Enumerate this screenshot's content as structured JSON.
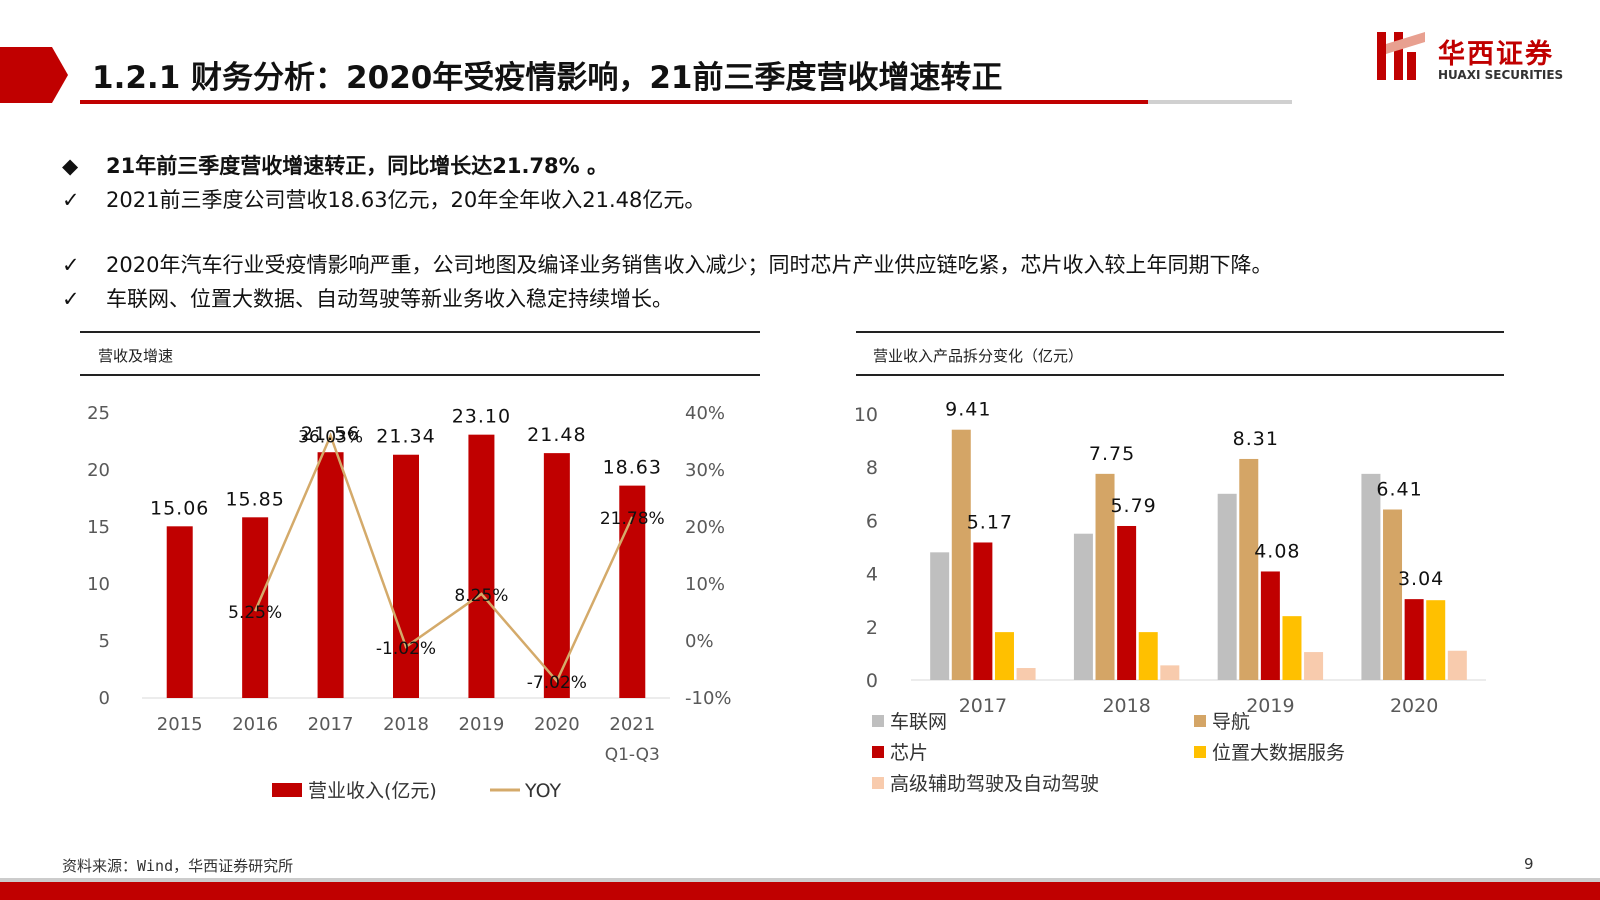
{
  "title": "1.2.1 财务分析：2020年受疫情影响，21前三季度营收增速转正",
  "logo": {
    "cn": "华西证券",
    "en": "HUAXI SECURITIES"
  },
  "bullets": [
    {
      "marker": "◆",
      "text": "21年前三季度营收增速转正，同比增长达21.78% 。",
      "bold": true
    },
    {
      "marker": "✓",
      "text": "2021前三季度公司营收18.63亿元，20年全年收入21.48亿元。",
      "bold": false
    },
    {
      "marker": "✓",
      "text": "2020年汽车行业受疫情影响严重，公司地图及编译业务销售收入减少；同时芯片产业供应链吃紧，芯片收入较上年同期下降。",
      "bold": false
    },
    {
      "marker": "✓",
      "text": "车联网、位置大数据、自动驾驶等新业务收入稳定持续增长。",
      "bold": false
    }
  ],
  "chart_data": [
    {
      "type": "bar",
      "title": "营收及增速",
      "categories": [
        "2015",
        "2016",
        "2017",
        "2018",
        "2019",
        "2020",
        "2021"
      ],
      "category_sublabels": [
        "",
        "",
        "",
        "",
        "",
        "",
        "Q1-Q3"
      ],
      "series": [
        {
          "name": "营业收入(亿元)",
          "type": "bar",
          "axis": "left",
          "color": "#c00000",
          "values": [
            15.06,
            15.85,
            21.56,
            21.34,
            23.1,
            21.48,
            18.63
          ],
          "labels": [
            "15.06",
            "15.85",
            "21.56",
            "21.34",
            "23.10",
            "21.48",
            "18.63"
          ]
        },
        {
          "name": "YOY",
          "type": "line",
          "axis": "right",
          "color": "#d4aa6a",
          "values": [
            null,
            5.25,
            36.03,
            -1.02,
            8.25,
            -7.02,
            21.78
          ],
          "labels": [
            "",
            "5.25%",
            "36.03%",
            "-1.02%",
            "8.25%",
            "-7.02%",
            "21.78%"
          ]
        }
      ],
      "left_axis": {
        "min": 0,
        "max": 25,
        "ticks": [
          "0",
          "5",
          "10",
          "15",
          "20",
          "25"
        ]
      },
      "right_axis": {
        "min": -10,
        "max": 40,
        "ticks": [
          "-10%",
          "0%",
          "10%",
          "20%",
          "30%",
          "40%"
        ]
      },
      "legend": "bottom"
    },
    {
      "type": "bar",
      "title": "营业收入产品拆分变化（亿元）",
      "categories": [
        "2017",
        "2018",
        "2019",
        "2020"
      ],
      "series": [
        {
          "name": "车联网",
          "color": "#bfbfbf",
          "values": [
            4.8,
            5.5,
            7.0,
            7.75
          ]
        },
        {
          "name": "导航",
          "color": "#d4a566",
          "values": [
            9.41,
            7.75,
            8.31,
            6.41
          ],
          "labels": [
            "9.41",
            "7.75",
            "8.31",
            "6.41"
          ]
        },
        {
          "name": "芯片",
          "color": "#c00000",
          "values": [
            5.17,
            5.79,
            4.08,
            3.04
          ],
          "labels": [
            "5.17",
            "5.79",
            "4.08",
            "3.04"
          ]
        },
        {
          "name": "位置大数据服务",
          "color": "#ffc000",
          "values": [
            1.8,
            1.8,
            2.4,
            3.0
          ]
        },
        {
          "name": "高级辅助驾驶及自动驾驶",
          "color": "#f8cbad",
          "values": [
            0.45,
            0.55,
            1.05,
            1.1
          ]
        }
      ],
      "y_axis": {
        "min": 0,
        "max": 10,
        "ticks": [
          "0",
          "2",
          "4",
          "6",
          "8",
          "10"
        ]
      },
      "legend": "bottom"
    }
  ],
  "footer": {
    "source": "资料来源：Wind，华西证券研究所",
    "page": "9"
  }
}
